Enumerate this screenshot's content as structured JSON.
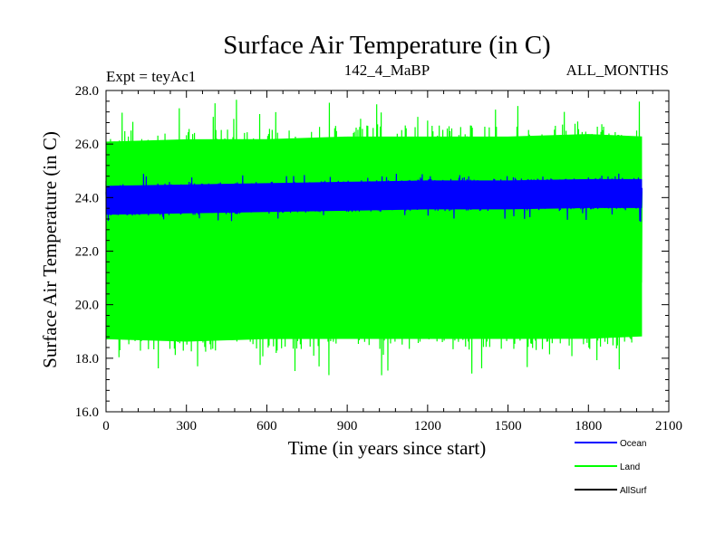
{
  "chart_data": {
    "type": "line",
    "title": "Surface Air Temperature (in C)",
    "subtitle_left": "Expt = teyAc1",
    "subtitle_center": "142_4_MaBP",
    "subtitle_right": "ALL_MONTHS",
    "xlabel": "Time (in years since start)",
    "ylabel": "Surface Air Temperature (in C)",
    "xlim": [
      0,
      2100
    ],
    "ylim": [
      16.0,
      28.0
    ],
    "x_ticks": [
      0,
      300,
      600,
      900,
      1200,
      1500,
      1800,
      2100
    ],
    "x_tick_labels": [
      "0",
      "300",
      "600",
      "900",
      "1200",
      "1500",
      "1800",
      "2100"
    ],
    "y_ticks": [
      16.0,
      18.0,
      20.0,
      22.0,
      24.0,
      26.0,
      28.0
    ],
    "y_tick_labels": [
      "16.0",
      "18.0",
      "20.0",
      "22.0",
      "24.0",
      "26.0",
      "28.0"
    ],
    "x_range_data": [
      0,
      2000
    ],
    "legend_position": "bottom-right",
    "series": [
      {
        "name": "Land",
        "color": "#00ff00",
        "envelope_x": [
          0,
          300,
          600,
          900,
          1200,
          1500,
          1800,
          2000
        ],
        "lower": [
          18.3,
          18.2,
          18.3,
          18.3,
          18.3,
          18.3,
          18.3,
          18.4
        ],
        "upper": [
          26.5,
          26.6,
          26.6,
          26.7,
          26.7,
          26.7,
          26.8,
          26.7
        ],
        "min": 17.3,
        "max": 27.7
      },
      {
        "name": "Ocean",
        "color": "#0000ff",
        "envelope_x": [
          0,
          300,
          600,
          900,
          1200,
          1500,
          1800,
          2000
        ],
        "lower": [
          23.3,
          23.35,
          23.4,
          23.45,
          23.5,
          23.5,
          23.55,
          23.55
        ],
        "upper": [
          24.5,
          24.55,
          24.6,
          24.65,
          24.7,
          24.7,
          24.75,
          24.75
        ],
        "min": 23.1,
        "max": 24.9
      },
      {
        "name": "AllSurf",
        "color": "#000000",
        "envelope_x": [],
        "lower": [],
        "upper": []
      }
    ]
  }
}
